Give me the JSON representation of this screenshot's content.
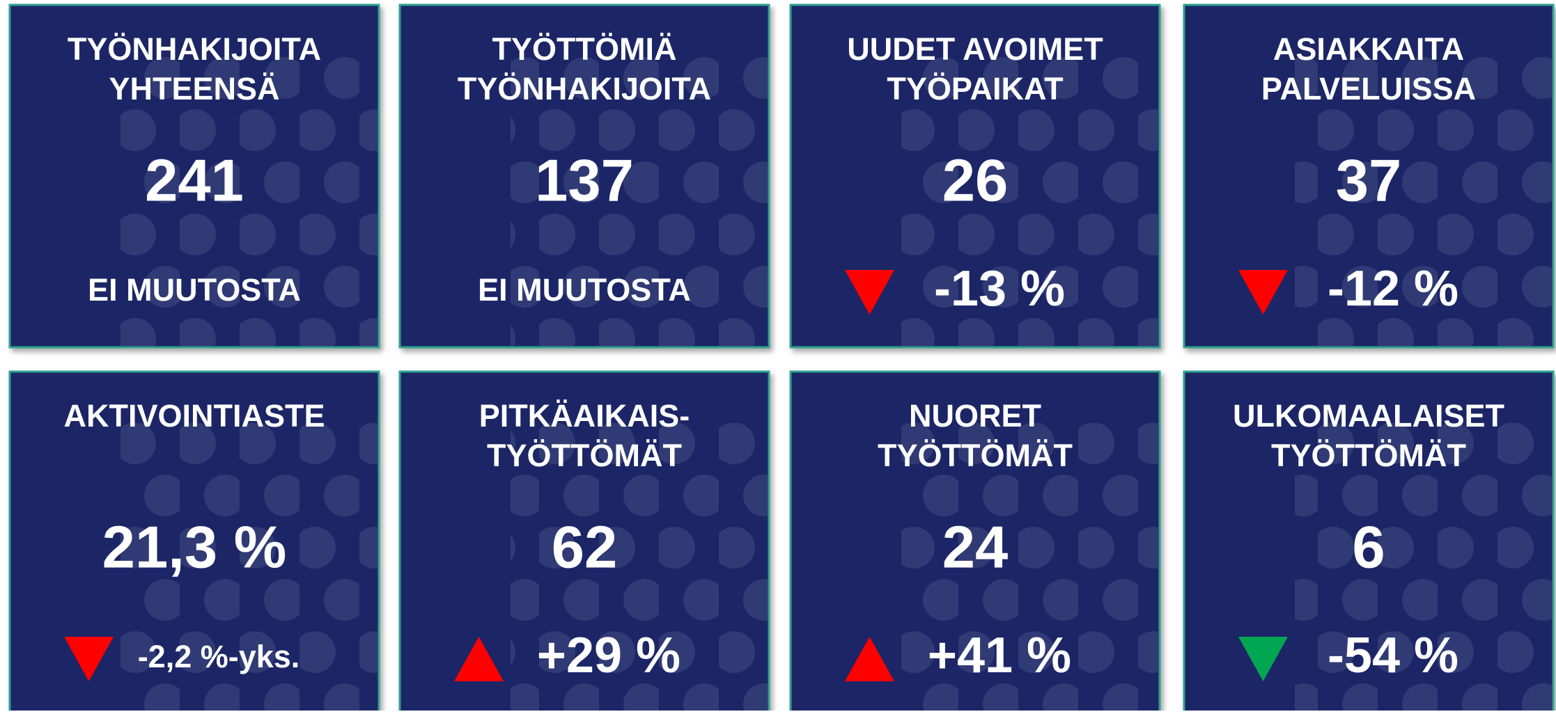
{
  "cards": [
    {
      "title": [
        "TYÖNHAKIJOITA",
        "YHTEENSÄ"
      ],
      "value": "241",
      "change": "EI MUUTOSTA",
      "trend": null
    },
    {
      "title": [
        "TYÖTTÖMIÄ",
        "TYÖNHAKIJOITA"
      ],
      "value": "137",
      "change": "EI MUUTOSTA",
      "trend": null
    },
    {
      "title": [
        "UUDET AVOIMET",
        "TYÖPAIKAT"
      ],
      "value": "26",
      "change": "-13 %",
      "trend": "down",
      "trend_color": "#ff0000"
    },
    {
      "title": [
        "ASIAKKAITA",
        "PALVELUISSA"
      ],
      "value": "37",
      "change": "-12 %",
      "trend": "down",
      "trend_color": "#ff0000"
    },
    {
      "title": [
        "AKTIVOINTIASTE"
      ],
      "value": "21,3 %",
      "change": "-2,2 %-yks.",
      "trend": "down",
      "trend_color": "#ff0000"
    },
    {
      "title": [
        "PITKÄAIKAIS-",
        "TYÖTTÖMÄT"
      ],
      "value": "62",
      "change": "+29 %",
      "trend": "up",
      "trend_color": "#ff0000"
    },
    {
      "title": [
        "NUORET",
        "TYÖTTÖMÄT"
      ],
      "value": "24",
      "change": "+41 %",
      "trend": "up",
      "trend_color": "#ff0000"
    },
    {
      "title": [
        "ULKOMAALAISET",
        "TYÖTTÖMÄT"
      ],
      "value": "6",
      "change": "-54 %",
      "trend": "down",
      "trend_color": "#00a651"
    }
  ]
}
